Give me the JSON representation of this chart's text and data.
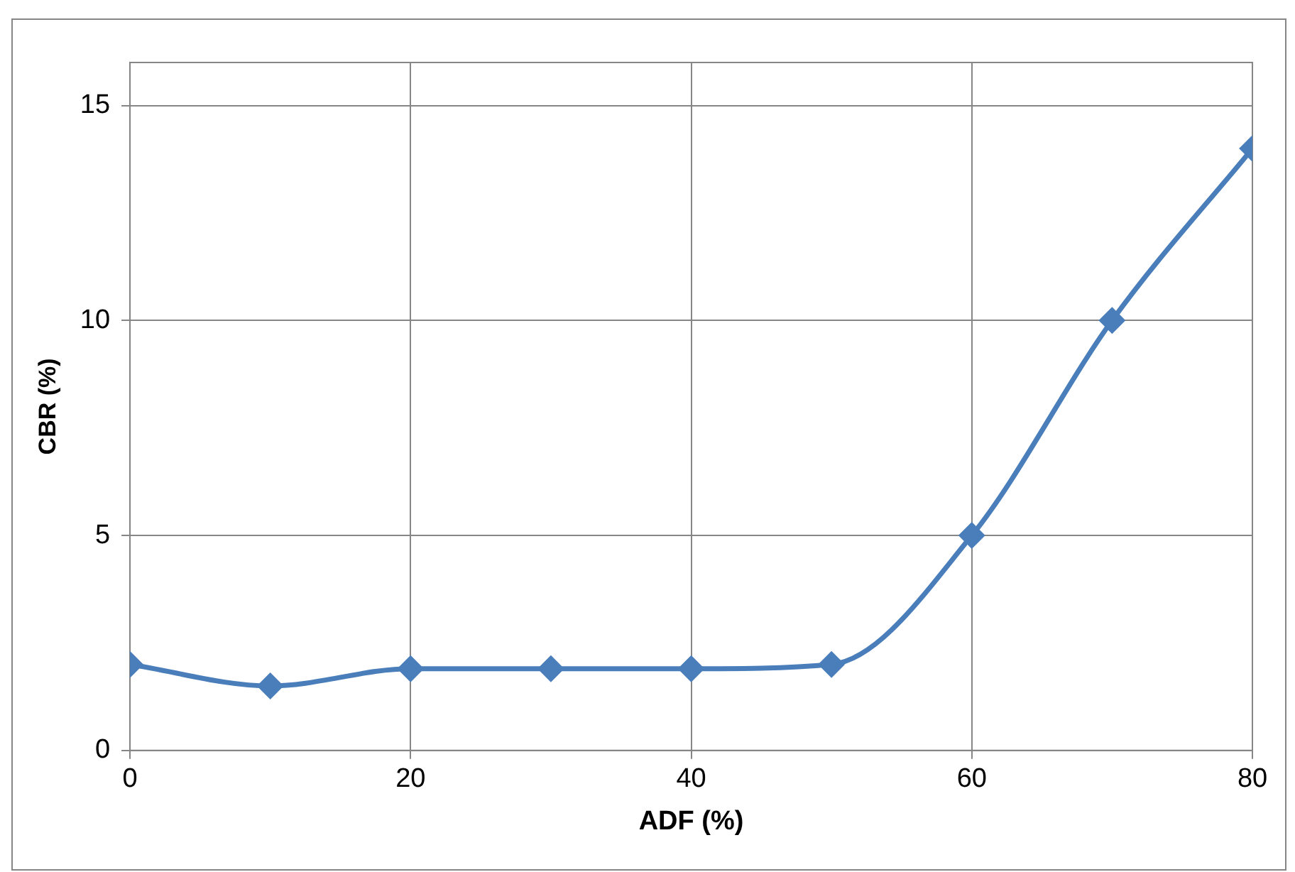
{
  "chart_data": {
    "type": "line",
    "xlabel": "ADF (%)",
    "ylabel": "CBR (%)",
    "x": [
      0,
      10,
      20,
      30,
      40,
      50,
      60,
      70,
      80
    ],
    "series": [
      {
        "color": "#4a7ebb",
        "values": [
          2,
          1.5,
          1.9,
          1.9,
          1.9,
          2,
          5,
          10,
          14
        ]
      }
    ],
    "xlim": [
      0,
      80
    ],
    "xticks": [
      0,
      20,
      40,
      60,
      80
    ],
    "ylim": [
      0,
      16
    ],
    "yticks": [
      0,
      5,
      10,
      15
    ],
    "grid": true,
    "legend": false,
    "marker": "diamond",
    "line_style": "solid"
  }
}
